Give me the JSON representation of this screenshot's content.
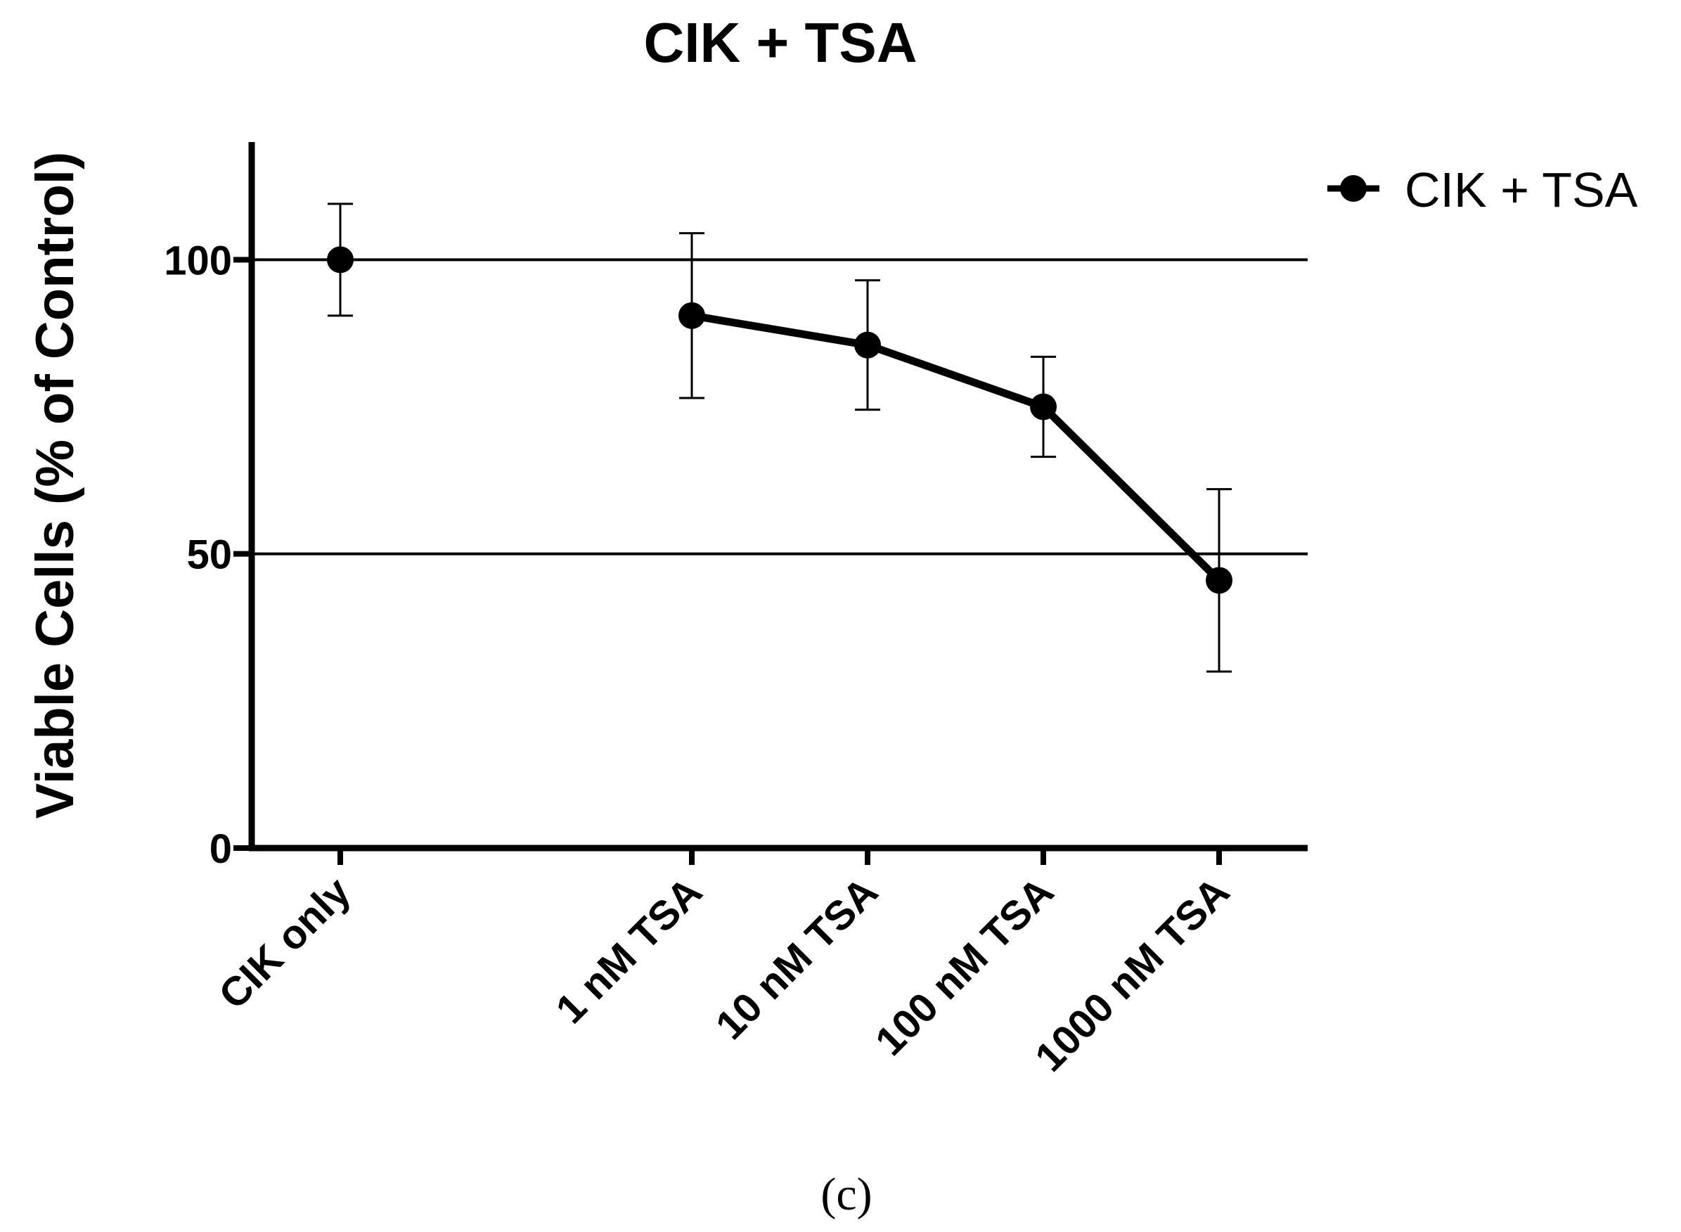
{
  "chart_data": {
    "type": "line",
    "title": "CIK + TSA",
    "xlabel": "",
    "ylabel": "Viable Cells (% of Control)",
    "categories": [
      "CIK only",
      "1 nM TSA",
      "10 nM TSA",
      "100 nM TSA",
      "1000 nM TSA"
    ],
    "series": [
      {
        "name": "CIK + TSA",
        "values": [
          100,
          90.5,
          85.5,
          75,
          45.5
        ],
        "error": [
          9.5,
          14,
          11,
          8.5,
          15.5
        ],
        "connected": [
          false,
          true,
          true,
          true,
          true
        ]
      }
    ],
    "ylim": [
      0,
      120
    ],
    "yticks": [
      0,
      50,
      100
    ],
    "reference_lines": [
      50,
      100
    ],
    "legend_position": "top-right",
    "caption": "(c)"
  }
}
